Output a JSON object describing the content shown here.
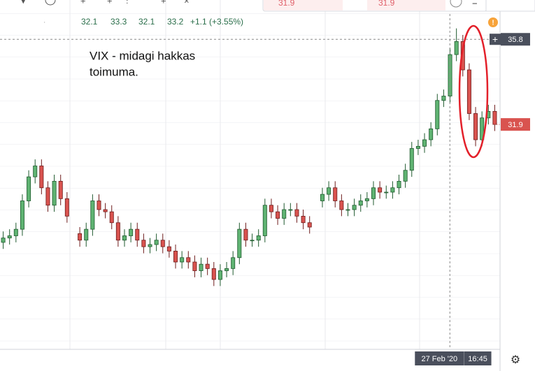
{
  "chart_data": {
    "type": "candlestick",
    "toolbar": {
      "sell_price": "31.9",
      "buy_price": "31.9",
      "minimize": "−"
    },
    "ohlc_header": {
      "open": 32.1,
      "high": 33.3,
      "low": 32.1,
      "close": 33.2,
      "change": "+1.1 (+3.55%)"
    },
    "annotation": [
      "VIX - midagi hakkas",
      "toimuma."
    ],
    "categories": [
      null,
      null,
      null,
      null,
      null,
      null,
      null,
      null,
      null,
      null,
      null,
      null,
      null,
      null,
      null,
      null,
      null,
      null,
      null,
      null,
      null,
      null,
      null,
      null,
      null,
      null,
      null,
      null,
      null,
      null,
      null,
      null,
      null,
      null,
      null,
      null,
      null,
      null,
      null,
      null,
      null,
      null,
      null,
      null,
      null,
      null,
      null,
      null,
      null,
      null,
      null,
      null,
      null,
      null,
      null,
      null,
      null,
      null,
      null,
      null,
      null,
      null,
      null,
      null,
      null,
      null,
      null,
      null,
      "27 Feb '20",
      null,
      null,
      null,
      null,
      null,
      "16:45",
      null,
      null,
      null
    ],
    "open": [
      26.5,
      26.7,
      26.8,
      27.1,
      28.4,
      29.5,
      30.0,
      29.0,
      28.2,
      29.3,
      28.5,
      null,
      26.9,
      26.6,
      27.1,
      28.4,
      28.0,
      27.9,
      27.4,
      26.6,
      26.8,
      27.1,
      26.6,
      26.3,
      26.4,
      26.6,
      26.3,
      26.1,
      25.6,
      25.8,
      25.6,
      25.2,
      25.5,
      25.3,
      24.8,
      25.2,
      25.3,
      25.8,
      27.1,
      26.6,
      26.6,
      26.8,
      28.2,
      27.9,
      27.6,
      28.0,
      28.0,
      27.7,
      27.4,
      null,
      28.4,
      28.7,
      29.0,
      28.4,
      28.0,
      28.0,
      28.2,
      28.4,
      28.5,
      29.0,
      28.8,
      28.8,
      29.0,
      29.3,
      29.8,
      30.8,
      30.9,
      31.2,
      31.7,
      33.0,
      33.2,
      35.1,
      35.7,
      34.4,
      32.4,
      31.2,
      32.2,
      32.5
    ],
    "high": [
      27.0,
      27.1,
      27.4,
      28.7,
      29.8,
      30.3,
      30.3,
      29.3,
      29.6,
      29.6,
      28.8,
      null,
      27.2,
      27.4,
      28.7,
      28.7,
      28.3,
      28.2,
      27.7,
      27.1,
      27.4,
      27.4,
      26.9,
      26.7,
      26.9,
      26.9,
      26.6,
      26.4,
      26.1,
      26.1,
      25.9,
      25.8,
      25.8,
      25.6,
      25.5,
      25.6,
      26.1,
      27.4,
      27.4,
      26.9,
      27.1,
      28.5,
      28.5,
      28.2,
      28.3,
      28.3,
      28.3,
      28.0,
      27.7,
      null,
      29.0,
      29.3,
      29.3,
      28.7,
      28.3,
      28.5,
      28.7,
      28.8,
      29.3,
      29.3,
      29.1,
      29.3,
      29.6,
      30.1,
      31.1,
      31.2,
      31.5,
      32.0,
      33.3,
      33.5,
      35.4,
      36.3,
      36.0,
      34.7,
      32.7,
      32.5,
      32.8,
      32.8
    ],
    "low": [
      26.2,
      26.4,
      26.5,
      26.8,
      28.1,
      29.2,
      28.7,
      27.9,
      27.9,
      28.2,
      27.4,
      null,
      26.3,
      26.3,
      26.8,
      27.7,
      27.6,
      27.1,
      26.3,
      26.3,
      26.5,
      26.3,
      26.0,
      26.0,
      26.1,
      26.0,
      25.8,
      25.3,
      25.3,
      25.3,
      24.9,
      24.9,
      25.0,
      24.5,
      24.5,
      24.9,
      25.0,
      25.5,
      26.3,
      26.3,
      26.3,
      26.5,
      27.6,
      27.3,
      27.3,
      27.7,
      27.4,
      27.1,
      26.9,
      null,
      28.1,
      28.4,
      28.1,
      27.7,
      27.7,
      27.7,
      27.9,
      28.1,
      28.2,
      28.5,
      28.5,
      28.5,
      28.7,
      29.0,
      29.5,
      30.5,
      30.6,
      30.9,
      31.4,
      32.7,
      32.9,
      34.8,
      34.1,
      32.1,
      30.9,
      30.9,
      31.9,
      31.6
    ],
    "close": [
      26.7,
      26.8,
      27.1,
      28.4,
      29.5,
      30.0,
      29.0,
      28.2,
      29.3,
      28.5,
      27.7,
      null,
      26.6,
      27.1,
      28.4,
      28.0,
      27.9,
      27.4,
      26.6,
      26.8,
      27.1,
      26.6,
      26.3,
      26.4,
      26.6,
      26.3,
      26.1,
      25.6,
      25.8,
      25.6,
      25.2,
      25.5,
      25.3,
      24.8,
      25.2,
      25.3,
      25.8,
      27.1,
      26.6,
      26.6,
      26.8,
      28.2,
      27.9,
      27.6,
      28.0,
      28.0,
      27.7,
      27.4,
      27.2,
      null,
      28.7,
      29.0,
      28.4,
      28.0,
      28.0,
      28.2,
      28.4,
      28.5,
      29.0,
      28.8,
      28.8,
      29.0,
      29.3,
      29.8,
      30.8,
      30.9,
      31.2,
      31.7,
      33.0,
      33.2,
      35.1,
      35.7,
      34.4,
      32.4,
      31.2,
      32.2,
      32.5,
      31.9
    ],
    "up_color": "#5fb372",
    "down_color": "#d9534f",
    "crosshair_price": 35.8,
    "ylim": [
      21.6,
      37.6
    ]
  }
}
